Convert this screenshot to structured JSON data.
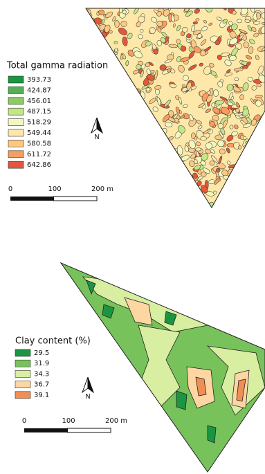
{
  "panels": [
    {
      "legend_title": "Total gamma radiation",
      "legend": [
        {
          "label": 393.73,
          "color": "#1a9641"
        },
        {
          "label": 424.87,
          "color": "#52b151"
        },
        {
          "label": 456.01,
          "color": "#8acc62"
        },
        {
          "label": 487.15,
          "color": "#c4e687"
        },
        {
          "label": 518.29,
          "color": "#f4f7bd"
        },
        {
          "label": 549.44,
          "color": "#fde8a9"
        },
        {
          "label": 580.58,
          "color": "#fcc883"
        },
        {
          "label": 611.72,
          "color": "#f89d5c"
        },
        {
          "label": 642.86,
          "color": "#e4573b"
        }
      ],
      "north": "N",
      "scale": [
        0,
        100,
        "200 m"
      ]
    },
    {
      "legend_title": "Clay content (%)",
      "legend": [
        {
          "label": 29.5,
          "color": "#1a9641"
        },
        {
          "label": 31.9,
          "color": "#78c25c"
        },
        {
          "label": 34.3,
          "color": "#d8eea0"
        },
        {
          "label": 36.7,
          "color": "#fdd6a2"
        },
        {
          "label": 39.1,
          "color": "#f08f55"
        }
      ],
      "north": "N",
      "scale": [
        0,
        100,
        "200 m"
      ]
    }
  ]
}
